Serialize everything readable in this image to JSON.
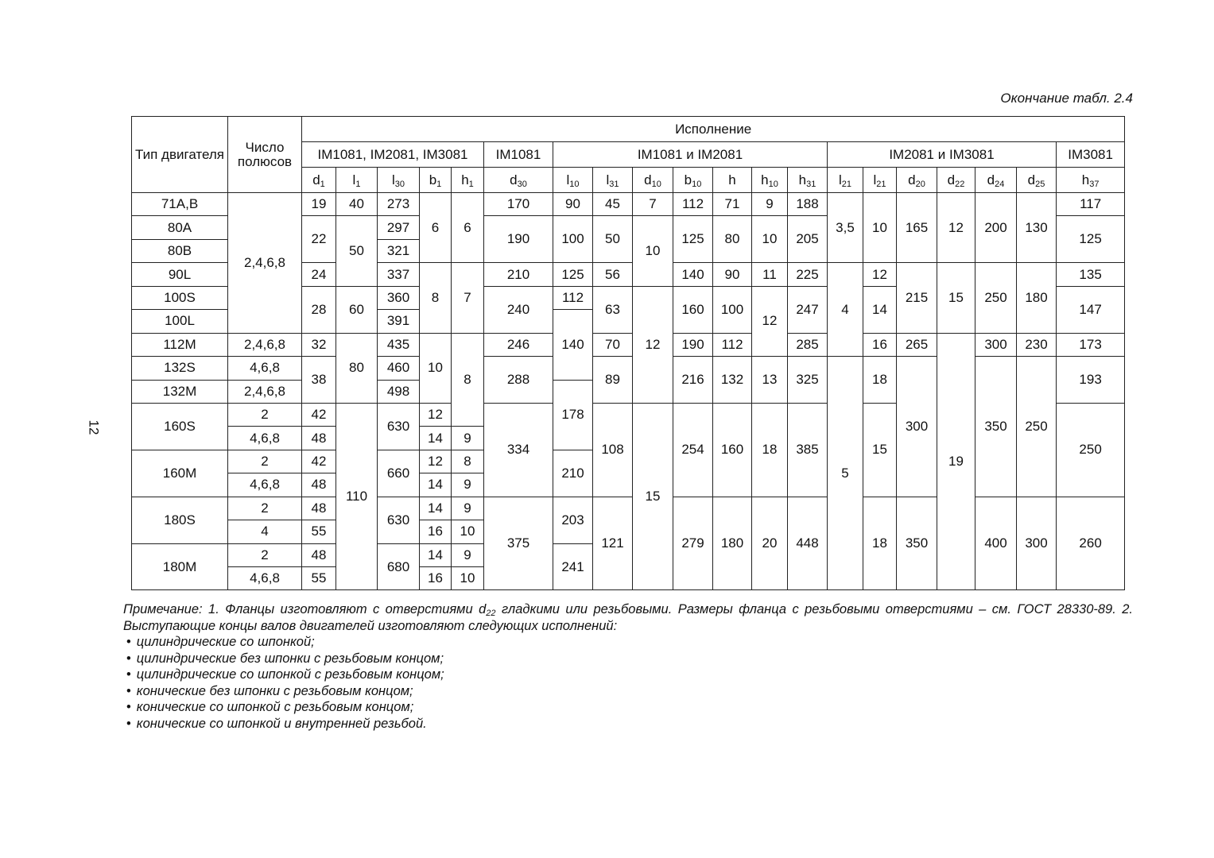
{
  "caption": "Окончание табл. 2.4",
  "page_number": "12",
  "table": {
    "header": {
      "type": "Тип двигателя",
      "poles": "Число полюсов",
      "execution": "Исполнение",
      "groups": [
        {
          "label": "IM1081, IM2081, IM3081",
          "span": 5
        },
        {
          "label": "IM1081",
          "span": 1
        },
        {
          "label": "IM1081 и IM2081",
          "span": 7
        },
        {
          "label": "IM2081 и IM3081",
          "span": 6
        },
        {
          "label": "IM3081",
          "span": 1
        }
      ],
      "params": [
        {
          "b": "d",
          "s": "1"
        },
        {
          "b": "l",
          "s": "1"
        },
        {
          "b": "l",
          "s": "30"
        },
        {
          "b": "b",
          "s": "1"
        },
        {
          "b": "h",
          "s": "1"
        },
        {
          "b": "d",
          "s": "30"
        },
        {
          "b": "l",
          "s": "10"
        },
        {
          "b": "l",
          "s": "31"
        },
        {
          "b": "d",
          "s": "10"
        },
        {
          "b": "b",
          "s": "10"
        },
        {
          "b": "h",
          "s": ""
        },
        {
          "b": "h",
          "s": "10"
        },
        {
          "b": "h",
          "s": "31"
        },
        {
          "b": "l",
          "s": "21"
        },
        {
          "b": "l",
          "s": "21"
        },
        {
          "b": "d",
          "s": "20"
        },
        {
          "b": "d",
          "s": "22"
        },
        {
          "b": "d",
          "s": "24"
        },
        {
          "b": "d",
          "s": "25"
        },
        {
          "b": "h",
          "s": "37"
        }
      ]
    },
    "columns": [
      [
        [
          "71A,B",
          1
        ],
        [
          "80A",
          1
        ],
        [
          "80B",
          1
        ],
        [
          "90L",
          1
        ],
        [
          "100S",
          1
        ],
        [
          "100L",
          1
        ],
        [
          "112M",
          1
        ],
        [
          "132S",
          1
        ],
        [
          "132M",
          1
        ],
        [
          "160S",
          2
        ],
        [
          "160M",
          2
        ],
        [
          "180S",
          2
        ],
        [
          "180M",
          2
        ]
      ],
      [
        [
          "2,4,6,8",
          6
        ],
        [
          "2,4,6,8",
          1
        ],
        [
          "4,6,8",
          1
        ],
        [
          "2,4,6,8",
          1
        ],
        [
          "2",
          1
        ],
        [
          "4,6,8",
          1
        ],
        [
          "2",
          1
        ],
        [
          "4,6,8",
          1
        ],
        [
          "2",
          1
        ],
        [
          "4",
          1
        ],
        [
          "2",
          1
        ],
        [
          "4,6,8",
          1
        ]
      ],
      [
        [
          "19",
          1
        ],
        [
          "22",
          2
        ],
        [
          "24",
          1
        ],
        [
          "28",
          2
        ],
        [
          "32",
          1
        ],
        [
          "38",
          2
        ],
        [
          "42",
          1
        ],
        [
          "48",
          1
        ],
        [
          "42",
          1
        ],
        [
          "48",
          1
        ],
        [
          "48",
          1
        ],
        [
          "55",
          1
        ],
        [
          "48",
          1
        ],
        [
          "55",
          1
        ]
      ],
      [
        [
          "40",
          1
        ],
        [
          "50",
          3
        ],
        [
          "60",
          2
        ],
        [
          "80",
          3
        ],
        [
          "110",
          8
        ]
      ],
      [
        [
          "273",
          1
        ],
        [
          "297",
          1
        ],
        [
          "321",
          1
        ],
        [
          "337",
          1
        ],
        [
          "360",
          1
        ],
        [
          "391",
          1
        ],
        [
          "435",
          1
        ],
        [
          "460",
          1
        ],
        [
          "498",
          1
        ],
        [
          "630",
          2
        ],
        [
          "660",
          2
        ],
        [
          "630",
          2
        ],
        [
          "680",
          2
        ]
      ],
      [
        [
          "6",
          3
        ],
        [
          "8",
          3
        ],
        [
          "10",
          3
        ],
        [
          "12",
          1
        ],
        [
          "14",
          1
        ],
        [
          "12",
          1
        ],
        [
          "14",
          1
        ],
        [
          "14",
          1
        ],
        [
          "16",
          1
        ],
        [
          "14",
          1
        ],
        [
          "16",
          1
        ]
      ],
      [
        [
          "6",
          3
        ],
        [
          "7",
          3
        ],
        [
          "8",
          4
        ],
        [
          "9",
          1
        ],
        [
          "8",
          1
        ],
        [
          "9",
          1
        ],
        [
          "9",
          1
        ],
        [
          "10",
          1
        ],
        [
          "9",
          1
        ],
        [
          "10",
          1
        ]
      ],
      [
        [
          "170",
          1
        ],
        [
          "190",
          2
        ],
        [
          "210",
          1
        ],
        [
          "240",
          2
        ],
        [
          "246",
          1
        ],
        [
          "288",
          2
        ],
        [
          "334",
          4
        ],
        [
          "375",
          4
        ]
      ],
      [
        [
          "90",
          1
        ],
        [
          "100",
          2
        ],
        [
          "125",
          1
        ],
        [
          "112",
          1
        ],
        [
          "140",
          3
        ],
        [
          "178",
          3
        ],
        [
          "210",
          2
        ],
        [
          "203",
          2
        ],
        [
          "241",
          2
        ]
      ],
      [
        [
          "45",
          1
        ],
        [
          "50",
          2
        ],
        [
          "56",
          1
        ],
        [
          "63",
          2
        ],
        [
          "70",
          1
        ],
        [
          "89",
          2
        ],
        [
          "108",
          4
        ],
        [
          "121",
          4
        ]
      ],
      [
        [
          "7",
          1
        ],
        [
          "10",
          3
        ],
        [
          "12",
          5
        ],
        [
          "15",
          8
        ]
      ],
      [
        [
          "112",
          1
        ],
        [
          "125",
          2
        ],
        [
          "140",
          1
        ],
        [
          "160",
          2
        ],
        [
          "190",
          1
        ],
        [
          "216",
          2
        ],
        [
          "254",
          4
        ],
        [
          "279",
          4
        ]
      ],
      [
        [
          "71",
          1
        ],
        [
          "80",
          2
        ],
        [
          "90",
          1
        ],
        [
          "100",
          2
        ],
        [
          "112",
          1
        ],
        [
          "132",
          2
        ],
        [
          "160",
          4
        ],
        [
          "180",
          4
        ]
      ],
      [
        [
          "9",
          1
        ],
        [
          "10",
          2
        ],
        [
          "11",
          1
        ],
        [
          "12",
          3
        ],
        [
          "13",
          2
        ],
        [
          "18",
          4
        ],
        [
          "20",
          4
        ]
      ],
      [
        [
          "188",
          1
        ],
        [
          "205",
          2
        ],
        [
          "225",
          1
        ],
        [
          "247",
          2
        ],
        [
          "285",
          1
        ],
        [
          "325",
          2
        ],
        [
          "385",
          4
        ],
        [
          "448",
          4
        ]
      ],
      [
        [
          "3,5",
          3
        ],
        [
          "4",
          4
        ],
        [
          "5",
          10
        ]
      ],
      [
        [
          "10",
          3
        ],
        [
          "12",
          1
        ],
        [
          "14",
          2
        ],
        [
          "16",
          1
        ],
        [
          "18",
          2
        ],
        [
          "15",
          4
        ],
        [
          "18",
          4
        ]
      ],
      [
        [
          "165",
          3
        ],
        [
          "215",
          3
        ],
        [
          "265",
          1
        ],
        [
          "300",
          6
        ],
        [
          "350",
          4
        ]
      ],
      [
        [
          "12",
          3
        ],
        [
          "15",
          3
        ],
        [
          "19",
          11
        ]
      ],
      [
        [
          "200",
          3
        ],
        [
          "250",
          3
        ],
        [
          "300",
          1
        ],
        [
          "350",
          6
        ],
        [
          "400",
          4
        ]
      ],
      [
        [
          "130",
          3
        ],
        [
          "180",
          3
        ],
        [
          "230",
          1
        ],
        [
          "250",
          6
        ],
        [
          "300",
          4
        ]
      ],
      [
        [
          "117",
          1
        ],
        [
          "125",
          2
        ],
        [
          "135",
          1
        ],
        [
          "147",
          2
        ],
        [
          "173",
          1
        ],
        [
          "193",
          2
        ],
        [
          "250",
          4
        ],
        [
          "260",
          4
        ]
      ]
    ]
  },
  "note": {
    "p1_before": "Примечание: 1. Фланцы изготовляют с отверстиями ",
    "p1_sym": "d",
    "p1_sub": "22",
    "p1_after": " гладкими или резьбовыми. Размеры фланца с резьбовыми отверстиями – см. ГОСТ 28330-89. 2. Выступающие концы валов двигателей изготовляют следующих исполнений:",
    "items": [
      "цилиндрические со шпонкой;",
      "цилиндрические без шпонки с резьбовым концом;",
      "цилиндрические со шпонкой с резьбовым концом;",
      "конические без шпонки с резьбовым концом;",
      "конические со шпонкой с резьбовым концом;",
      "конические со шпонкой и внутренней резьбой."
    ]
  }
}
